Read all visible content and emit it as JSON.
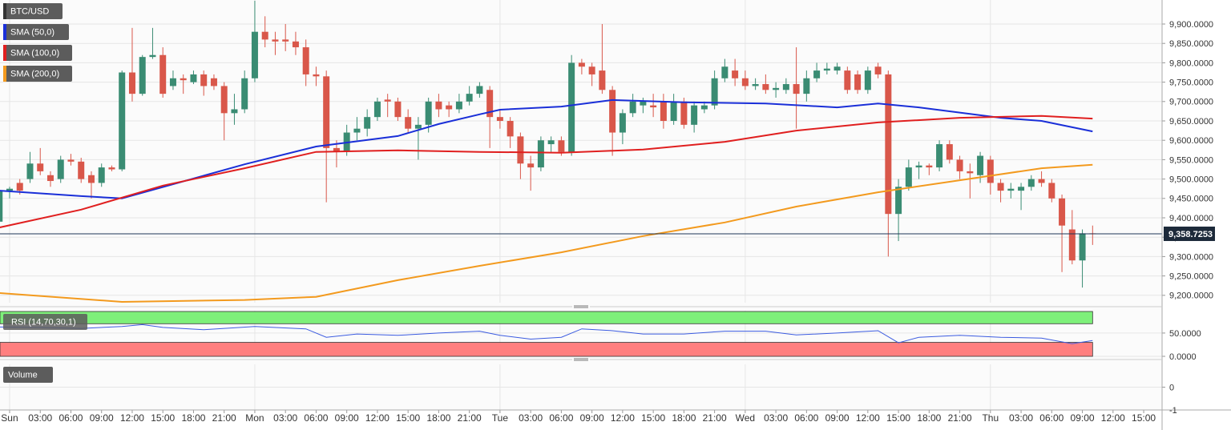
{
  "chart_data": [
    {
      "type": "candlestick",
      "title": "BTC/USD",
      "x": [
        -1,
        0,
        1,
        2,
        3,
        4,
        5,
        6,
        7,
        8,
        9,
        10,
        11,
        12,
        13,
        14,
        15,
        16,
        17,
        18,
        19,
        20,
        21,
        22,
        23,
        24,
        25,
        26,
        27,
        28,
        29,
        30,
        31,
        32,
        33,
        34,
        35,
        36,
        37,
        38,
        39,
        40,
        41,
        42,
        43,
        44,
        45,
        46,
        47,
        48,
        49,
        50,
        51,
        52,
        53,
        54,
        55,
        56,
        57,
        58,
        59,
        60,
        61,
        62,
        63,
        64,
        65,
        66,
        67,
        68,
        69,
        70,
        71,
        72,
        73,
        74,
        75,
        76,
        77,
        78,
        79,
        80,
        81,
        82,
        83,
        84,
        85,
        86,
        87,
        88,
        89,
        90,
        91,
        92,
        93,
        94,
        95,
        96,
        97,
        98,
        99,
        100,
        101,
        102,
        103,
        104,
        105,
        106
      ],
      "open": [
        9390,
        9470,
        9490,
        9500,
        9540,
        9510,
        9500,
        9550,
        9545,
        9510,
        9490,
        9530,
        9525,
        9775,
        9720,
        9815,
        9820,
        9740,
        9760,
        9750,
        9770,
        9760,
        9740,
        9670,
        9680,
        9760,
        9880,
        9860,
        9860,
        9855,
        9840,
        9770,
        9765,
        9580,
        9570,
        9620,
        9630,
        9660,
        9705,
        9700,
        9660,
        9630,
        9640,
        9700,
        9690,
        9680,
        9700,
        9720,
        9730,
        9660,
        9650,
        9610,
        9540,
        9530,
        9590,
        9600,
        9570,
        9800,
        9790,
        9780,
        9730,
        9620,
        9670,
        9690,
        9690,
        9700,
        9650,
        9700,
        9640,
        9680,
        9690,
        9760,
        9780,
        9760,
        9740,
        9745,
        9730,
        9730,
        9745,
        9720,
        9760,
        9780,
        9780,
        9780,
        9770,
        9730,
        9790,
        9770,
        9410,
        9480,
        9530,
        9535,
        9530,
        9590,
        9550,
        9520,
        9510,
        9550,
        9490,
        9470,
        9470,
        9480,
        9500,
        9490,
        9450,
        9370,
        9290,
        9360
      ],
      "high": [
        9490,
        9480,
        9500,
        9570,
        9580,
        9520,
        9560,
        9565,
        9555,
        9520,
        9540,
        9535,
        9780,
        9890,
        9820,
        9890,
        9840,
        9780,
        9770,
        9780,
        9780,
        9770,
        9750,
        9720,
        9780,
        9960,
        9920,
        9880,
        9900,
        9880,
        9860,
        9790,
        9780,
        9600,
        9640,
        9660,
        9680,
        9710,
        9720,
        9710,
        9680,
        9660,
        9710,
        9720,
        9700,
        9720,
        9740,
        9750,
        9740,
        9680,
        9660,
        9620,
        9560,
        9610,
        9610,
        9610,
        9820,
        9810,
        9800,
        9900,
        9740,
        9680,
        9720,
        9710,
        9720,
        9720,
        9720,
        9710,
        9700,
        9700,
        9780,
        9810,
        9810,
        9780,
        9760,
        9770,
        9750,
        9760,
        9840,
        9780,
        9800,
        9800,
        9800,
        9790,
        9780,
        9790,
        9800,
        9780,
        9500,
        9550,
        9545,
        9540,
        9600,
        9600,
        9560,
        9540,
        9570,
        9560,
        9500,
        9490,
        9490,
        9510,
        9520,
        9500,
        9460,
        9420,
        9370,
        9380
      ],
      "low": [
        9320,
        9450,
        9460,
        9490,
        9510,
        9480,
        9490,
        9535,
        9490,
        9450,
        9480,
        9520,
        9520,
        9700,
        9715,
        9810,
        9710,
        9730,
        9720,
        9745,
        9715,
        9730,
        9600,
        9640,
        9670,
        9750,
        9840,
        9820,
        9830,
        9820,
        9740,
        9740,
        9440,
        9530,
        9560,
        9600,
        9610,
        9650,
        9660,
        9650,
        9620,
        9550,
        9620,
        9660,
        9660,
        9670,
        9690,
        9710,
        9580,
        9630,
        9580,
        9500,
        9470,
        9520,
        9570,
        9560,
        9560,
        9770,
        9740,
        9720,
        9560,
        9590,
        9660,
        9670,
        9660,
        9630,
        9640,
        9630,
        9620,
        9670,
        9680,
        9750,
        9740,
        9730,
        9730,
        9720,
        9710,
        9720,
        9630,
        9700,
        9750,
        9770,
        9770,
        9720,
        9720,
        9720,
        9760,
        9300,
        9340,
        9470,
        9500,
        9510,
        9520,
        9540,
        9500,
        9450,
        9490,
        9460,
        9440,
        9450,
        9420,
        9470,
        9480,
        9440,
        9260,
        9280,
        9220,
        9330
      ],
      "close": [
        9470,
        9475,
        9470,
        9540,
        9520,
        9495,
        9550,
        9545,
        9500,
        9490,
        9530,
        9525,
        9775,
        9720,
        9815,
        9820,
        9720,
        9760,
        9755,
        9770,
        9740,
        9740,
        9670,
        9680,
        9760,
        9880,
        9860,
        9855,
        9855,
        9840,
        9770,
        9765,
        9580,
        9570,
        9620,
        9630,
        9660,
        9700,
        9700,
        9660,
        9630,
        9640,
        9700,
        9680,
        9680,
        9700,
        9720,
        9740,
        9660,
        9650,
        9610,
        9540,
        9530,
        9600,
        9600,
        9570,
        9800,
        9790,
        9770,
        9730,
        9620,
        9670,
        9700,
        9700,
        9685,
        9650,
        9700,
        9640,
        9690,
        9690,
        9760,
        9790,
        9760,
        9740,
        9745,
        9730,
        9735,
        9745,
        9720,
        9760,
        9780,
        9785,
        9790,
        9730,
        9730,
        9780,
        9770,
        9410,
        9480,
        9530,
        9535,
        9530,
        9590,
        9550,
        9520,
        9515,
        9560,
        9490,
        9470,
        9475,
        9480,
        9500,
        9490,
        9450,
        9380,
        9290,
        9360,
        9358.7253
      ],
      "up_color": "#3a8c73",
      "down_color": "#d9574a",
      "xlim": [
        -0.94,
        112.8
      ],
      "xticks": [
        {
          "value": 0,
          "label": "Sun"
        },
        {
          "value": 3,
          "label": "03:00"
        },
        {
          "value": 6,
          "label": "06:00"
        },
        {
          "value": 9,
          "label": "09:00"
        },
        {
          "value": 12,
          "label": "12:00"
        },
        {
          "value": 15,
          "label": "15:00"
        },
        {
          "value": 18,
          "label": "18:00"
        },
        {
          "value": 21,
          "label": "21:00"
        },
        {
          "value": 24,
          "label": "Mon"
        },
        {
          "value": 27,
          "label": "03:00"
        },
        {
          "value": 30,
          "label": "06:00"
        },
        {
          "value": 33,
          "label": "09:00"
        },
        {
          "value": 36,
          "label": "12:00"
        },
        {
          "value": 39,
          "label": "15:00"
        },
        {
          "value": 42,
          "label": "18:00"
        },
        {
          "value": 45,
          "label": "21:00"
        },
        {
          "value": 48,
          "label": "Tue"
        },
        {
          "value": 51,
          "label": "03:00"
        },
        {
          "value": 54,
          "label": "06:00"
        },
        {
          "value": 57,
          "label": "09:00"
        },
        {
          "value": 60,
          "label": "12:00"
        },
        {
          "value": 63,
          "label": "15:00"
        },
        {
          "value": 66,
          "label": "18:00"
        },
        {
          "value": 69,
          "label": "21:00"
        },
        {
          "value": 72,
          "label": "Wed"
        },
        {
          "value": 75,
          "label": "03:00"
        },
        {
          "value": 78,
          "label": "06:00"
        },
        {
          "value": 81,
          "label": "09:00"
        },
        {
          "value": 84,
          "label": "12:00"
        },
        {
          "value": 87,
          "label": "15:00"
        },
        {
          "value": 90,
          "label": "18:00"
        },
        {
          "value": 93,
          "label": "21:00"
        },
        {
          "value": 96,
          "label": "Thu"
        },
        {
          "value": 99,
          "label": "03:00"
        },
        {
          "value": 102,
          "label": "06:00"
        },
        {
          "value": 105,
          "label": "09:00"
        },
        {
          "value": 108,
          "label": "12:00"
        },
        {
          "value": 111,
          "label": "15:00"
        }
      ],
      "ylim": [
        9181,
        9962
      ],
      "yticks": [
        {
          "value": 9200,
          "label": "9,200.0000"
        },
        {
          "value": 9250,
          "label": "9,250.0000"
        },
        {
          "value": 9300,
          "label": "9,300.0000"
        },
        {
          "value": 9350,
          "label": "9,350.0000"
        },
        {
          "value": 9400,
          "label": "9,400.0000"
        },
        {
          "value": 9450,
          "label": "9,450.0000"
        },
        {
          "value": 9500,
          "label": "9,500.0000"
        },
        {
          "value": 9550,
          "label": "9,550.0000"
        },
        {
          "value": 9600,
          "label": "9,600.0000"
        },
        {
          "value": 9650,
          "label": "9,650.0000"
        },
        {
          "value": 9700,
          "label": "9,700.0000"
        },
        {
          "value": 9750,
          "label": "9,750.0000"
        },
        {
          "value": 9800,
          "label": "9,800.0000"
        },
        {
          "value": 9850,
          "label": "9,850.0000"
        },
        {
          "value": 9900,
          "label": "9,900.0000"
        }
      ],
      "grid": true,
      "last_price": {
        "value": 9358.7253,
        "label": "9,358.7253"
      },
      "series": [
        {
          "name": "SMA (50,0)",
          "color": "#1a2fd8",
          "x": [
            -1,
            7,
            11,
            23,
            30,
            38,
            42,
            46,
            48,
            54,
            59,
            66,
            74,
            81,
            85,
            89,
            97,
            101,
            106
          ],
          "values": [
            9470,
            9456,
            9450,
            9538,
            9584,
            9611,
            9642,
            9667,
            9679,
            9687,
            9704,
            9698,
            9695,
            9685,
            9695,
            9685,
            9658,
            9650,
            9623
          ]
        },
        {
          "name": "SMA (100,0)",
          "color": "#e01f1f",
          "x": [
            -1,
            7,
            15,
            23,
            30,
            38,
            46,
            54,
            62,
            70,
            77,
            85,
            93,
            101,
            106
          ],
          "values": [
            9375,
            9421,
            9483,
            9528,
            9570,
            9574,
            9570,
            9568,
            9576,
            9596,
            9625,
            9646,
            9658,
            9663,
            9656
          ]
        },
        {
          "name": "SMA (200,0)",
          "color": "#f39a1e",
          "x": [
            -1,
            11,
            23,
            30,
            38,
            46,
            54,
            62,
            70,
            77,
            85,
            93,
            101,
            106
          ],
          "values": [
            9206,
            9183,
            9188,
            9196,
            9239,
            9276,
            9311,
            9353,
            9388,
            9429,
            9466,
            9497,
            9528,
            9537
          ]
        }
      ]
    },
    {
      "type": "line",
      "series": [
        {
          "name": "RSI (14,70,30,1)",
          "color": "#3b5be0",
          "x": [
            -1,
            3,
            7,
            11,
            13,
            15,
            19,
            24,
            29,
            31,
            34,
            38,
            42,
            46,
            48,
            51,
            54,
            56,
            59,
            62,
            66,
            70,
            74,
            77,
            81,
            85,
            87,
            89,
            93,
            97,
            101,
            104,
            106
          ],
          "values": [
            63,
            62,
            60,
            64,
            68,
            62,
            57,
            64,
            59,
            41,
            48,
            45,
            50,
            54,
            45,
            37,
            41,
            59,
            55,
            48,
            48,
            54,
            54,
            46,
            50,
            55,
            29,
            41,
            45,
            41,
            39,
            27,
            34
          ]
        }
      ],
      "ylim": [
        0,
        98
      ],
      "yticks": [
        {
          "value": 50,
          "label": "50.0000"
        },
        {
          "value": 0,
          "label": "0.0000"
        }
      ],
      "overbought": 70,
      "oversold": 30,
      "overbought_color": "#7ef07a",
      "oversold_color": "#ff7f7f"
    },
    {
      "type": "bar",
      "title": "Volume",
      "ylim": [
        -1,
        1
      ],
      "yticks": [
        0,
        -1
      ]
    }
  ]
}
